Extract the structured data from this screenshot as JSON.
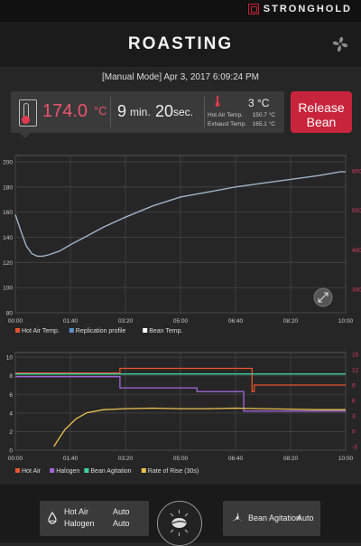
{
  "header": {
    "brand": "STRONGHOLD",
    "title": "ROASTING",
    "icons": [
      "fan-icon"
    ]
  },
  "mode_line": "[Manual Mode] Apr 3, 2017 6:09:24 PM",
  "stats": {
    "bean_temp_value": "174.0",
    "bean_temp_unit": "°C",
    "time_min": "9",
    "time_min_unit": "min.",
    "time_sec": "20",
    "time_sec_unit": "sec.",
    "ambient_value": "3 °C",
    "hot_air_label": "Hot Air Temp.",
    "hot_air_value": "150.7 °C",
    "exhaust_label": "Exhaust Temp.",
    "exhaust_value": "165.1 °C"
  },
  "release_button": {
    "line1": "Release",
    "line2": "Bean"
  },
  "colors": {
    "accent": "#c8243b",
    "bean_temp": "#9fb3c8",
    "hot_air": "#e8542f",
    "halogen": "#a066d8",
    "agitation": "#3fd4a0",
    "ror": "#ecc252",
    "right_axis": "#e23b63"
  },
  "chart_data": [
    {
      "type": "line",
      "x_ticks": [
        "00:00",
        "01:40",
        "03:20",
        "05:00",
        "06:40",
        "08:20",
        "10:00"
      ],
      "xlim": [
        0,
        600
      ],
      "y_left_ticks": [
        80,
        100,
        120,
        140,
        160,
        180,
        200
      ],
      "ylim": [
        80,
        205
      ],
      "y_right_ticks": [
        300,
        400,
        500,
        600
      ],
      "legend": [
        "Hot Air Temp.",
        "Replication profile",
        "Bean Temp."
      ],
      "series": [
        {
          "name": "Bean Temp.",
          "x": [
            0,
            10,
            20,
            30,
            40,
            50,
            60,
            80,
            100,
            130,
            160,
            200,
            250,
            300,
            350,
            400,
            450,
            500,
            550,
            590,
            600
          ],
          "y": [
            158,
            145,
            133,
            127,
            125,
            125,
            126,
            129,
            134,
            141,
            148,
            156,
            165,
            172,
            176,
            180,
            183,
            186,
            189,
            192,
            192
          ]
        }
      ]
    },
    {
      "type": "line",
      "x_ticks": [
        "00:00",
        "01:40",
        "03:20",
        "05:00",
        "06:40",
        "08:20",
        "10:00"
      ],
      "xlim": [
        0,
        600
      ],
      "y_left_ticks": [
        0,
        2,
        4,
        6,
        8,
        10
      ],
      "ylim": [
        0,
        10.5
      ],
      "y_right_ticks": [
        -3,
        0,
        3,
        6,
        9,
        12,
        15
      ],
      "legend": [
        "Hot Air",
        "Halogen",
        "Bean Agitation",
        "Rate of Rise (30s)"
      ],
      "series": [
        {
          "name": "Hot Air",
          "x": [
            0,
            190,
            190,
            430,
            430,
            434,
            434,
            600
          ],
          "y": [
            8.3,
            8.3,
            8.8,
            8.8,
            6.3,
            6.3,
            7.0,
            7.0
          ]
        },
        {
          "name": "Halogen",
          "x": [
            0,
            190,
            190,
            330,
            330,
            415,
            415,
            600
          ],
          "y": [
            7.9,
            7.9,
            6.7,
            6.7,
            6.3,
            6.3,
            4.2,
            4.2
          ]
        },
        {
          "name": "Bean Agitation",
          "x": [
            0,
            600
          ],
          "y": [
            8.2,
            8.2
          ]
        },
        {
          "name": "Rate of Rise (30s)",
          "x": [
            70,
            80,
            90,
            110,
            130,
            160,
            200,
            250,
            300,
            350,
            400,
            450,
            500,
            550,
            600
          ],
          "y": [
            -3,
            -1.3,
            0.3,
            2.4,
            3.6,
            4.2,
            4.4,
            4.5,
            4.4,
            4.4,
            4.5,
            4.4,
            4.3,
            4.2,
            4.2
          ]
        }
      ]
    }
  ],
  "bottom": {
    "mode_a_label": "Hot Air",
    "mode_a_value": "Auto",
    "mode_b_label": "Halogen",
    "mode_b_value": "Auto",
    "agitation_label": "Bean Agitation",
    "agitation_value": "Auto"
  }
}
